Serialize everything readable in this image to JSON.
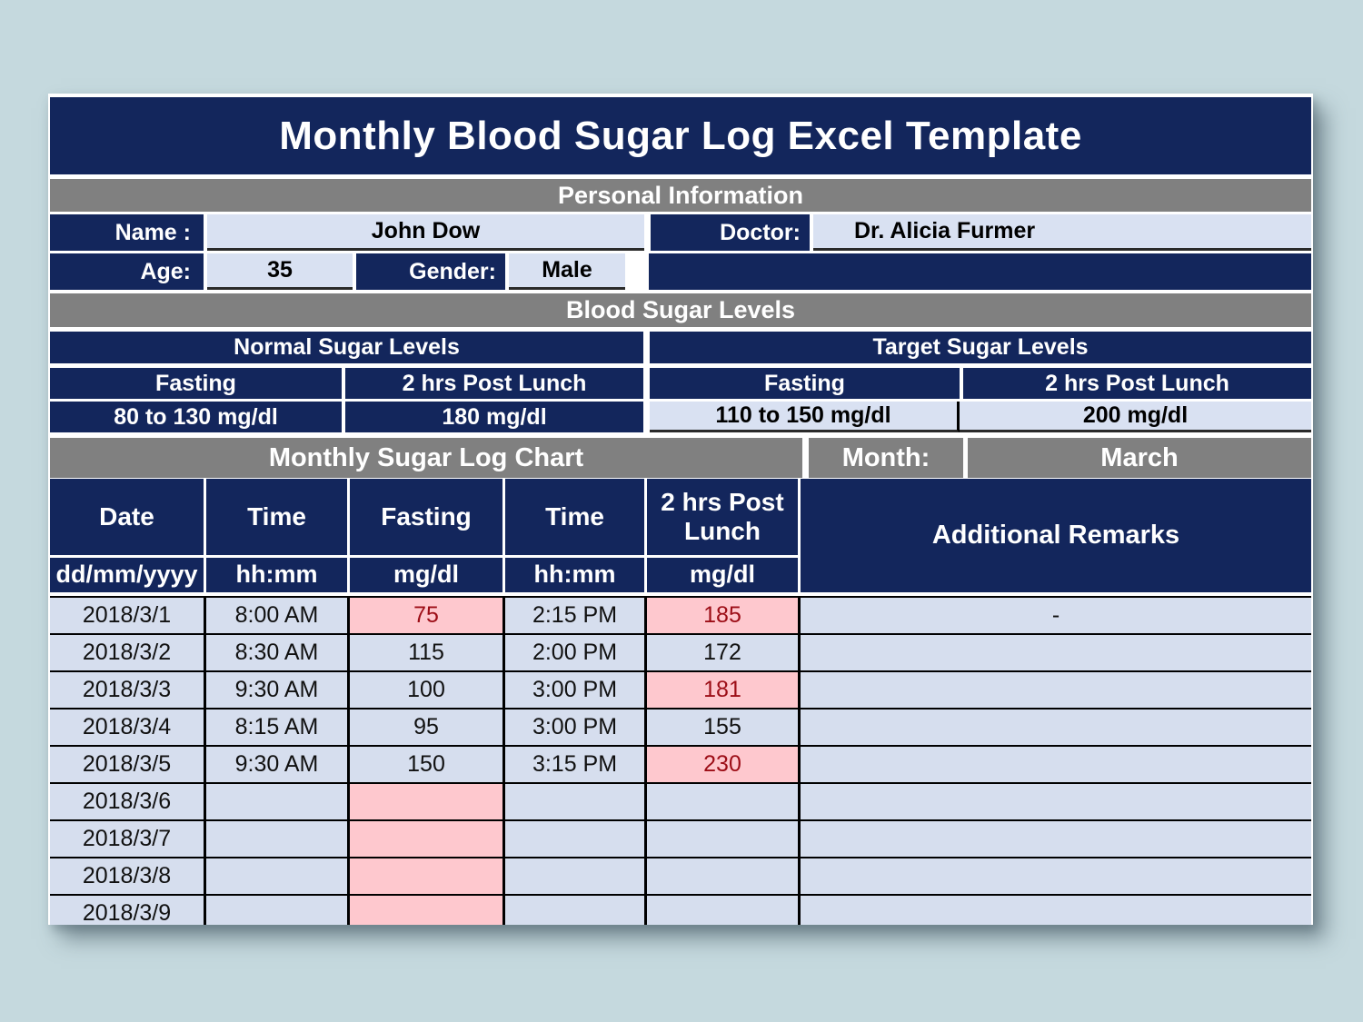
{
  "page": {
    "title": "Monthly Blood Sugar Log Excel Template"
  },
  "personal_info": {
    "section_title": "Personal Information",
    "name_label": "Name :",
    "name_value": "John Dow",
    "doctor_label": "Doctor:",
    "doctor_value": "Dr. Alicia Furmer",
    "age_label": "Age:",
    "age_value": "35",
    "gender_label": "Gender:",
    "gender_value": "Male"
  },
  "sugar_levels": {
    "section_title": "Blood Sugar Levels",
    "normal": {
      "title": "Normal Sugar Levels",
      "fasting_label": "Fasting",
      "post_lunch_label": "2 hrs Post Lunch",
      "fasting_value": "80 to 130 mg/dl",
      "post_lunch_value": "180 mg/dl"
    },
    "target": {
      "title": "Target Sugar Levels",
      "fasting_label": "Fasting",
      "post_lunch_label": "2 hrs Post Lunch",
      "fasting_value": "110 to 150 mg/dl",
      "post_lunch_value": "200 mg/dl"
    }
  },
  "log": {
    "section_title": "Monthly Sugar Log Chart",
    "month_label": "Month:",
    "month_value": "March",
    "columns": [
      "Date",
      "Time",
      "Fasting",
      "Time",
      "2 hrs Post Lunch",
      "Additional Remarks"
    ],
    "units": [
      "dd/mm/yyyy",
      "hh:mm",
      "mg/dl",
      "hh:mm",
      "mg/dl"
    ],
    "rows": [
      {
        "date": "2018/3/1",
        "time1": "8:00 AM",
        "fasting": "75",
        "fasting_bad": true,
        "time2": "2:15 PM",
        "post_lunch": "185",
        "post_lunch_bad": true,
        "remarks": "-"
      },
      {
        "date": "2018/3/2",
        "time1": "8:30 AM",
        "fasting": "115",
        "fasting_bad": false,
        "time2": "2:00 PM",
        "post_lunch": "172",
        "post_lunch_bad": false,
        "remarks": ""
      },
      {
        "date": "2018/3/3",
        "time1": "9:30 AM",
        "fasting": "100",
        "fasting_bad": false,
        "time2": "3:00 PM",
        "post_lunch": "181",
        "post_lunch_bad": true,
        "remarks": ""
      },
      {
        "date": "2018/3/4",
        "time1": "8:15 AM",
        "fasting": "95",
        "fasting_bad": false,
        "time2": "3:00 PM",
        "post_lunch": "155",
        "post_lunch_bad": false,
        "remarks": ""
      },
      {
        "date": "2018/3/5",
        "time1": "9:30 AM",
        "fasting": "150",
        "fasting_bad": false,
        "time2": "3:15 PM",
        "post_lunch": "230",
        "post_lunch_bad": true,
        "remarks": ""
      },
      {
        "date": "2018/3/6",
        "time1": "",
        "fasting": "",
        "fasting_bad": true,
        "time2": "",
        "post_lunch": "",
        "post_lunch_bad": false,
        "remarks": ""
      },
      {
        "date": "2018/3/7",
        "time1": "",
        "fasting": "",
        "fasting_bad": true,
        "time2": "",
        "post_lunch": "",
        "post_lunch_bad": false,
        "remarks": ""
      },
      {
        "date": "2018/3/8",
        "time1": "",
        "fasting": "",
        "fasting_bad": true,
        "time2": "",
        "post_lunch": "",
        "post_lunch_bad": false,
        "remarks": ""
      },
      {
        "date": "2018/3/9",
        "time1": "",
        "fasting": "",
        "fasting_bad": true,
        "time2": "",
        "post_lunch": "",
        "post_lunch_bad": false,
        "remarks": ""
      }
    ]
  },
  "colors": {
    "navy": "#13265c",
    "graybar": "#808080",
    "cell": "#d9e1f2",
    "cell-data": "#d6deee",
    "bad-fill": "#fec8ce",
    "bad-text": "#9c0d16",
    "page-bg": "#c5d9de"
  }
}
